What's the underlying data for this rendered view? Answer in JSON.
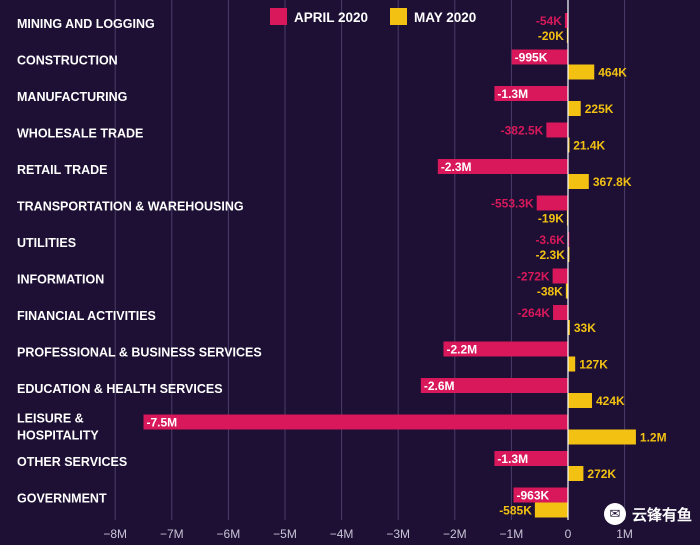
{
  "chart_data": {
    "type": "bar",
    "orientation": "horizontal",
    "categories": [
      "MINING AND LOGGING",
      "CONSTRUCTION",
      "MANUFACTURING",
      "WHOLESALE TRADE",
      "RETAIL TRADE",
      "TRANSPORTATION & WAREHOUSING",
      "UTILITIES",
      "INFORMATION",
      "FINANCIAL ACTIVITIES",
      "PROFESSIONAL & BUSINESS SERVICES",
      "EDUCATION & HEALTH SERVICES",
      "LEISURE & HOSPITALITY",
      "OTHER SERVICES",
      "GOVERNMENT"
    ],
    "category_lines": [
      [
        "MINING AND LOGGING"
      ],
      [
        "CONSTRUCTION"
      ],
      [
        "MANUFACTURING"
      ],
      [
        "WHOLESALE TRADE"
      ],
      [
        "RETAIL TRADE"
      ],
      [
        "TRANSPORTATION & WAREHOUSING"
      ],
      [
        "UTILITIES"
      ],
      [
        "INFORMATION"
      ],
      [
        "FINANCIAL ACTIVITIES"
      ],
      [
        "PROFESSIONAL & BUSINESS SERVICES"
      ],
      [
        "EDUCATION & HEALTH SERVICES"
      ],
      [
        "LEISURE &",
        "HOSPITALITY"
      ],
      [
        "OTHER SERVICES"
      ],
      [
        "GOVERNMENT"
      ]
    ],
    "series": [
      {
        "name": "APRIL 2020",
        "color": "#d8185a",
        "values": [
          -54000,
          -995000,
          -1300000,
          -382500,
          -2300000,
          -553300,
          -3600,
          -272000,
          -264000,
          -2200000,
          -2600000,
          -7500000,
          -1300000,
          -963000
        ],
        "labels": [
          "-54K",
          "-995K",
          "-1.3M",
          "-382.5K",
          "-2.3M",
          "-553.3K",
          "-3.6K",
          "-272K",
          "-264K",
          "-2.2M",
          "-2.6M",
          "-7.5M",
          "-1.3M",
          "-963K"
        ]
      },
      {
        "name": "MAY 2020",
        "color": "#f2c112",
        "values": [
          -20000,
          464000,
          225000,
          21400,
          367800,
          -19000,
          -2300,
          -38000,
          33000,
          127000,
          424000,
          1200000,
          272000,
          -585000
        ],
        "labels": [
          "-20K",
          "464K",
          "225K",
          "21.4K",
          "367.8K",
          "-19K",
          "-2.3K",
          "-38K",
          "33K",
          "127K",
          "424K",
          "1.2M",
          "272K",
          "-585K"
        ]
      }
    ],
    "xlim": [
      -8000000,
      1000000
    ],
    "xticks": [
      -8000000,
      -7000000,
      -6000000,
      -5000000,
      -4000000,
      -3000000,
      -2000000,
      -1000000,
      0,
      1000000
    ],
    "xtick_labels": [
      "−8M",
      "−7M",
      "−6M",
      "−5M",
      "−4M",
      "−3M",
      "−2M",
      "−1M",
      "0",
      "1M"
    ],
    "grid": true,
    "legend_position": "top"
  },
  "watermark": {
    "text": "云锋有鱼",
    "icon": "wechat-icon"
  }
}
